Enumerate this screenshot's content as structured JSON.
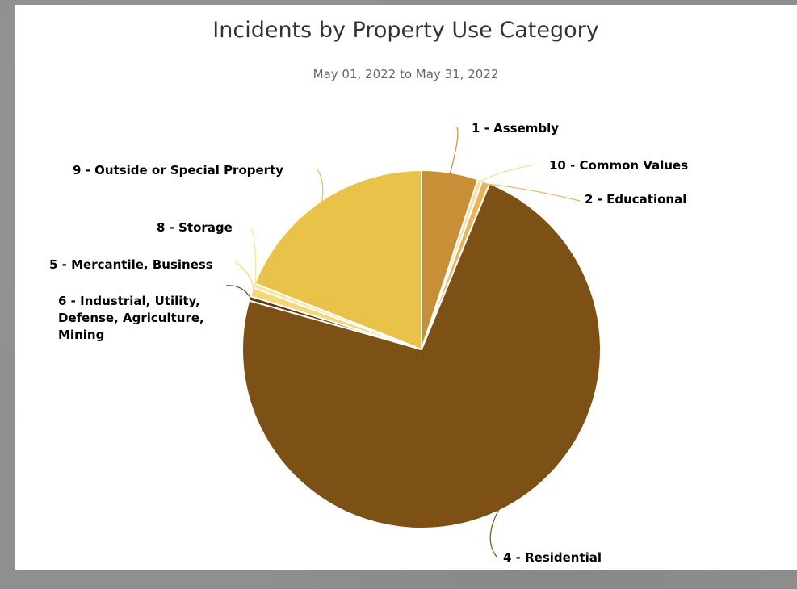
{
  "chart_data": {
    "type": "pie",
    "title": "Incidents by Property Use Category",
    "subtitle": "May 01, 2022 to May 31, 2022",
    "slices": [
      {
        "label": "1 - Assembly",
        "value": 5.1,
        "color": "#c98f36"
      },
      {
        "label": "10 - Common Values",
        "value": 0.4,
        "color": "#f3dda1"
      },
      {
        "label": "2 - Educational",
        "value": 0.7,
        "color": "#e8b55f"
      },
      {
        "label": "4 - Residential",
        "value": 73.2,
        "color": "#7d5116"
      },
      {
        "label": "6 - Industrial, Utility, Defense, Agriculture, Mining",
        "value": 0.4,
        "color": "#5e3d12"
      },
      {
        "label": "5 - Mercantile, Business",
        "value": 0.8,
        "color": "#f5d77a"
      },
      {
        "label": "8 - Storage",
        "value": 0.4,
        "color": "#f9e39a"
      },
      {
        "label": "9 - Outside or Special Property",
        "value": 19.0,
        "color": "#e9c24a"
      }
    ]
  }
}
